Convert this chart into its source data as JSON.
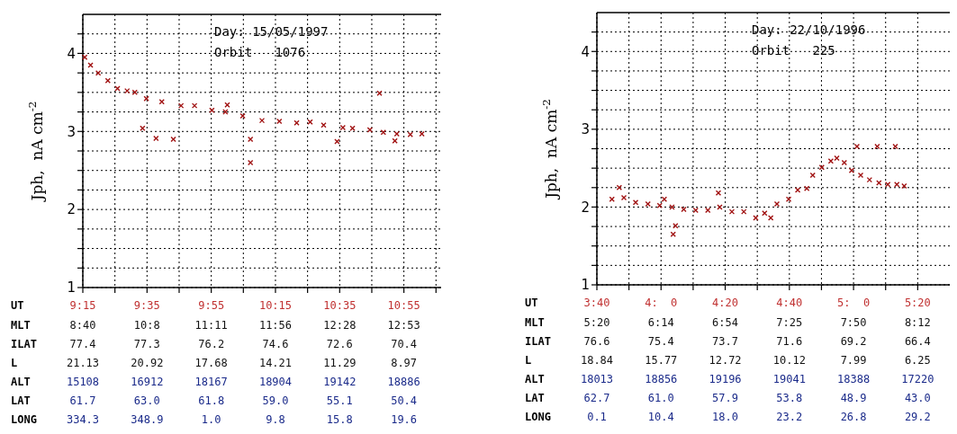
{
  "chart_data": [
    {
      "type": "scatter",
      "title": "Day: 15/05/1997",
      "subtitle": "Orbit   1076",
      "ylabel": "Jph,  nA cm$^{-2}$",
      "xlabel": "UT",
      "marker": "cross",
      "grid": true,
      "xlim": [
        9.25,
        11.11
      ],
      "xticks": [
        {
          "value": 9.25,
          "label": "9:15"
        },
        {
          "value": 9.4167,
          "label": null
        },
        {
          "value": 9.5833,
          "label": "9:35"
        },
        {
          "value": 9.75,
          "label": null
        },
        {
          "value": 9.9167,
          "label": "9:55"
        },
        {
          "value": 10.0833,
          "label": null
        },
        {
          "value": 10.25,
          "label": "10:15"
        },
        {
          "value": 10.4167,
          "label": null
        },
        {
          "value": 10.5833,
          "label": "10:35"
        },
        {
          "value": 10.75,
          "label": null
        },
        {
          "value": 10.9167,
          "label": "10:55"
        },
        {
          "value": 11.0833,
          "label": null
        }
      ],
      "ylim": [
        1,
        4.5
      ],
      "yticks": [
        1,
        {
          "value": 1.25,
          "label": null
        },
        {
          "value": 1.5,
          "label": null
        },
        {
          "value": 1.75,
          "label": null
        },
        2,
        {
          "value": 2.25,
          "label": null
        },
        {
          "value": 2.5,
          "label": null
        },
        {
          "value": 2.75,
          "label": null
        },
        3,
        {
          "value": 3.25,
          "label": null
        },
        {
          "value": 3.5,
          "label": null
        },
        {
          "value": 3.75,
          "label": null
        },
        4,
        {
          "value": 4.25,
          "label": null
        }
      ],
      "series": [
        {
          "color": "#a01010",
          "x": [
            9.26,
            9.29,
            9.33,
            9.38,
            9.43,
            9.48,
            9.52,
            9.58,
            9.66,
            9.76,
            9.83,
            9.92,
            9.99,
            10.08,
            10.18,
            10.27,
            10.36,
            10.43,
            10.5,
            10.6,
            10.65,
            10.74,
            10.81,
            10.88,
            10.95,
            11.01,
            9.56,
            9.63,
            9.72,
            10.12,
            10.12,
            10.57,
            10.79,
            10.0,
            10.87
          ],
          "values": [
            3.95,
            3.85,
            3.75,
            3.65,
            3.55,
            3.52,
            3.5,
            3.42,
            3.38,
            3.33,
            3.33,
            3.27,
            3.25,
            3.2,
            3.14,
            3.13,
            3.11,
            3.12,
            3.08,
            3.05,
            3.04,
            3.02,
            2.99,
            2.97,
            2.96,
            2.97,
            3.04,
            2.91,
            2.9,
            2.9,
            2.6,
            2.87,
            3.49,
            3.34,
            2.88
          ]
        }
      ],
      "annotations": [
        "MLT",
        "8:40",
        "10:8",
        "11:11",
        "11:56",
        "12:28",
        "12:53",
        "ILAT",
        "77.4",
        "77.3",
        "76.2",
        "74.6",
        "72.6",
        "70.4",
        "L",
        "21.13",
        "20.92",
        "17.68",
        "14.21",
        "11.29",
        "8.97",
        "ALT",
        "15108",
        "16912",
        "18167",
        "18904",
        "19142",
        "18886",
        "LAT",
        "61.7",
        "63.0",
        "61.8",
        "59.0",
        "55.1",
        "50.4",
        "LONG",
        "334.3",
        "348.9",
        "1.0",
        "9.8",
        "15.8",
        "19.6"
      ]
    },
    {
      "type": "scatter",
      "title": "Day: 22/10/1996",
      "subtitle": "Orbit   225",
      "ylabel": "Jph,  nA cm$^{-2}$",
      "xlabel": "UT",
      "marker": "cross",
      "grid": true,
      "xlim": [
        3.6667,
        5.5
      ],
      "xticks": [
        {
          "value": 3.6667,
          "label": "3:40"
        },
        {
          "value": 3.8333,
          "label": null
        },
        {
          "value": 4,
          "label": "4:  0"
        },
        {
          "value": 4.1667,
          "label": null
        },
        {
          "value": 4.3333,
          "label": "4:20"
        },
        {
          "value": 4.5,
          "label": null
        },
        {
          "value": 4.6667,
          "label": "4:40"
        },
        {
          "value": 4.8333,
          "label": null
        },
        {
          "value": 5,
          "label": "5:  0"
        },
        {
          "value": 5.1667,
          "label": null
        },
        {
          "value": 5.3333,
          "label": "5:20"
        }
      ],
      "ylim": [
        1,
        4.5
      ],
      "yticks": [
        1,
        {
          "value": 1.25,
          "label": null
        },
        {
          "value": 1.5,
          "label": null
        },
        {
          "value": 1.75,
          "label": null
        },
        2,
        {
          "value": 2.25,
          "label": null
        },
        {
          "value": 2.5,
          "label": null
        },
        {
          "value": 2.75,
          "label": null
        },
        3,
        {
          "value": 3.25,
          "label": null
        },
        {
          "value": 3.5,
          "label": null
        },
        {
          "value": 3.75,
          "label": null
        },
        4,
        {
          "value": 4.25,
          "label": null
        }
      ],
      "series": [
        {
          "color": "#a01010",
          "x": [
            3.745,
            3.807,
            3.868,
            3.932,
            3.993,
            4.057,
            4.118,
            4.18,
            4.243,
            4.305,
            4.368,
            4.43,
            4.492,
            4.538,
            4.57,
            4.602,
            4.663,
            4.71,
            4.757,
            4.788,
            4.835,
            4.882,
            4.913,
            4.952,
            4.99,
            5.037,
            5.083,
            5.132,
            5.178,
            5.225,
            5.263,
            4.063,
            4.075,
            4.298,
            3.783,
            5.018,
            5.123,
            5.217,
            4.017
          ],
          "values": [
            2.1,
            2.12,
            2.06,
            2.04,
            2.02,
            2.0,
            1.97,
            1.96,
            1.96,
            2.0,
            1.94,
            1.94,
            1.86,
            1.92,
            1.86,
            2.04,
            2.1,
            2.22,
            2.24,
            2.41,
            2.51,
            2.59,
            2.63,
            2.57,
            2.47,
            2.41,
            2.35,
            2.31,
            2.29,
            2.29,
            2.27,
            1.65,
            1.76,
            2.18,
            2.25,
            2.78,
            2.78,
            2.78,
            2.1
          ]
        }
      ],
      "annotations": [
        "MLT",
        "5:20",
        "6:14",
        "6:54",
        "7:25",
        "7:50",
        "8:12",
        "ILAT",
        "76.6",
        "75.4",
        "73.7",
        "71.6",
        "69.2",
        "66.4",
        "L",
        "18.84",
        "15.77",
        "12.72",
        "10.12",
        "7.99",
        "6.25",
        "ALT",
        "18013",
        "18856",
        "19196",
        "19041",
        "18388",
        "17220",
        "LAT",
        "62.7",
        "61.0",
        "57.9",
        "53.8",
        "48.9",
        "43.0",
        "LONG",
        "0.1",
        "10.4",
        "18.0",
        "23.2",
        "26.8",
        "29.2"
      ]
    }
  ]
}
